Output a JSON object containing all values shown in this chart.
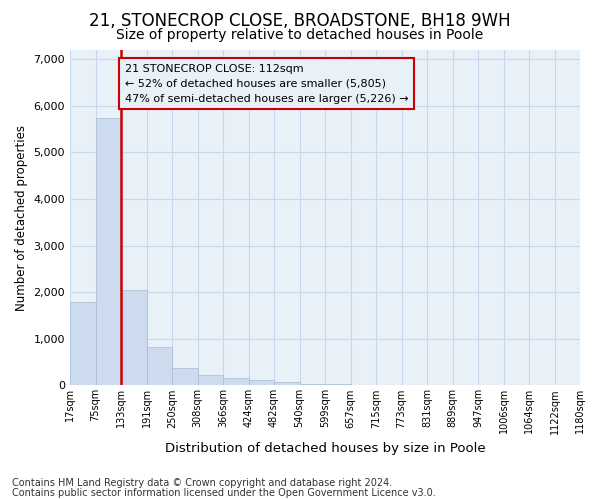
{
  "title_line1": "21, STONECROP CLOSE, BROADSTONE, BH18 9WH",
  "title_line2": "Size of property relative to detached houses in Poole",
  "xlabel": "Distribution of detached houses by size in Poole",
  "ylabel": "Number of detached properties",
  "footnote1": "Contains HM Land Registry data © Crown copyright and database right 2024.",
  "footnote2": "Contains public sector information licensed under the Open Government Licence v3.0.",
  "annotation_line1": "21 STONECROP CLOSE: 112sqm",
  "annotation_line2": "← 52% of detached houses are smaller (5,805)",
  "annotation_line3": "47% of semi-detached houses are larger (5,226) →",
  "bin_labels": [
    "17sqm",
    "75sqm",
    "133sqm",
    "191sqm",
    "250sqm",
    "308sqm",
    "366sqm",
    "424sqm",
    "482sqm",
    "540sqm",
    "599sqm",
    "657sqm",
    "715sqm",
    "773sqm",
    "831sqm",
    "889sqm",
    "947sqm",
    "1006sqm",
    "1064sqm",
    "1122sqm",
    "1180sqm"
  ],
  "bar_heights": [
    1780,
    5750,
    2050,
    820,
    370,
    230,
    155,
    105,
    65,
    40,
    25,
    12,
    5,
    2,
    1,
    0,
    0,
    0,
    0,
    0
  ],
  "bar_color": "#ccdcee",
  "bar_edgecolor": "#aabbd0",
  "ylim": [
    0,
    7200
  ],
  "yticks": [
    0,
    1000,
    2000,
    3000,
    4000,
    5000,
    6000,
    7000
  ],
  "grid_color": "#c8d8ec",
  "plot_bg_color": "#e8f0f8",
  "fig_bg_color": "#ffffff",
  "annotation_box_edgecolor": "#cc0000",
  "redline_color": "#cc0000",
  "redline_bar_index": 2,
  "title_fontsize": 12,
  "subtitle_fontsize": 10,
  "footnote_fontsize": 7
}
